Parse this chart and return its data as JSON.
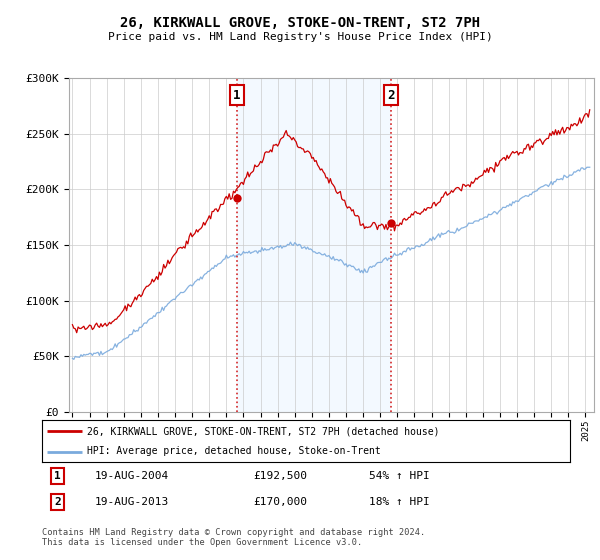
{
  "title": "26, KIRKWALL GROVE, STOKE-ON-TRENT, ST2 7PH",
  "subtitle": "Price paid vs. HM Land Registry's House Price Index (HPI)",
  "legend_line1": "26, KIRKWALL GROVE, STOKE-ON-TRENT, ST2 7PH (detached house)",
  "legend_line2": "HPI: Average price, detached house, Stoke-on-Trent",
  "footnote": "Contains HM Land Registry data © Crown copyright and database right 2024.\nThis data is licensed under the Open Government Licence v3.0.",
  "sale1_date": "19-AUG-2004",
  "sale1_price": "£192,500",
  "sale1_hpi": "54% ↑ HPI",
  "sale2_date": "19-AUG-2013",
  "sale2_price": "£170,000",
  "sale2_hpi": "18% ↑ HPI",
  "sale1_year": 2004.625,
  "sale1_value": 192500,
  "sale2_year": 2013.625,
  "sale2_value": 170000,
  "hpi_color": "#7aaadd",
  "price_color": "#cc0000",
  "highlight_color": "#ddeeff",
  "ylim": [
    0,
    300000
  ],
  "xlim_start": 1994.8,
  "xlim_end": 2025.5,
  "yticks": [
    0,
    50000,
    100000,
    150000,
    200000,
    250000,
    300000
  ],
  "xticks": [
    1995,
    1996,
    1997,
    1998,
    1999,
    2000,
    2001,
    2002,
    2003,
    2004,
    2005,
    2006,
    2007,
    2008,
    2009,
    2010,
    2011,
    2012,
    2013,
    2014,
    2015,
    2016,
    2017,
    2018,
    2019,
    2020,
    2021,
    2022,
    2023,
    2024,
    2025
  ]
}
